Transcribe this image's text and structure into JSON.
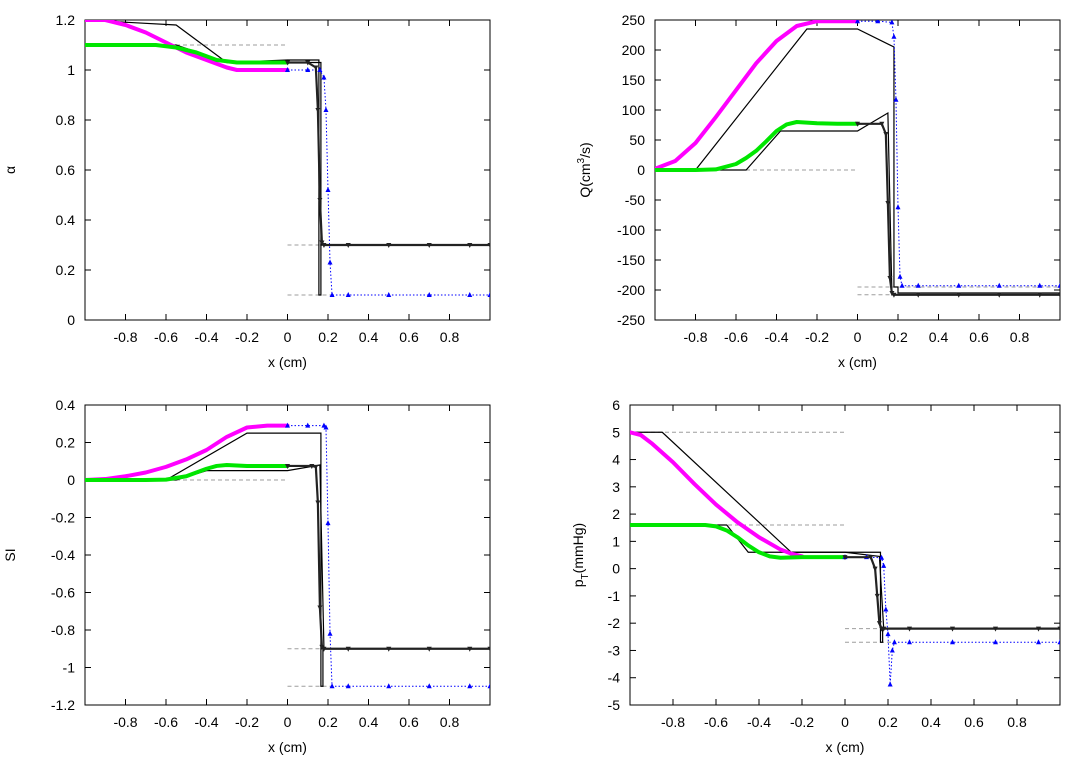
{
  "figure": {
    "colors": {
      "exact": "#000000",
      "ref": "#9e9e9e",
      "scheme_left": "#ff00ff",
      "scheme_right": "#0000ff",
      "scheme_green": "#00e600",
      "scheme_mark": "#222222"
    }
  },
  "chart_data": [
    {
      "id": "alpha",
      "type": "line",
      "title": "",
      "xlabel": "x (cm)",
      "ylabel": "α",
      "xlim": [
        -1,
        1
      ],
      "ylim": [
        0,
        1.2
      ],
      "xticks": [
        -0.8,
        -0.6,
        -0.4,
        -0.2,
        0,
        0.2,
        0.4,
        0.6,
        0.8
      ],
      "xtick_labels": [
        "-0.8",
        "-0.6",
        "-0.4",
        "-0.2",
        "0",
        "0.2",
        "0.4",
        "0.6",
        "0.8"
      ],
      "yticks": [
        0,
        0.2,
        0.4,
        0.6,
        0.8,
        1,
        1.2
      ],
      "ytick_labels": [
        "0",
        "0.2",
        "0.4",
        "0.6",
        "0.8",
        "1",
        "1.2"
      ],
      "series": [
        {
          "name": "initial-data-reference",
          "style": "ref",
          "x": [
            -1,
            0,
            0,
            1
          ],
          "y": [
            1.1,
            1.1,
            null,
            null
          ]
        },
        {
          "name": "reference-right-high",
          "style": "ref",
          "x": [
            0,
            1
          ],
          "y": [
            0.3,
            0.3
          ]
        },
        {
          "name": "reference-right-low",
          "style": "ref",
          "x": [
            0,
            0.22
          ],
          "y": [
            0.1,
            0.1
          ]
        },
        {
          "name": "exact-solution-a",
          "style": "exact",
          "x": [
            -1,
            -0.55,
            -0.3,
            0,
            0.155,
            0.155,
            0.165,
            0.165,
            1
          ],
          "y": [
            1.2,
            1.18,
            1.03,
            1.04,
            1.04,
            0.1,
            0.1,
            0.3,
            0.3
          ]
        },
        {
          "name": "exact-solution-b",
          "style": "exact",
          "x": [
            -1,
            -0.55,
            -0.3,
            0,
            0.155,
            0.165,
            0.165,
            0.3
          ],
          "y": [
            1.1,
            1.1,
            1.03,
            1.03,
            1.03,
            1.03,
            0.3,
            0.3
          ]
        },
        {
          "name": "scheme-top",
          "style": "scheme_left",
          "x": [
            -1,
            -0.9,
            -0.8,
            -0.7,
            -0.6,
            -0.5,
            -0.4,
            -0.3,
            -0.25,
            -0.2,
            -0.15,
            -0.1,
            0
          ],
          "y": [
            1.2,
            1.2,
            1.18,
            1.15,
            1.11,
            1.07,
            1.04,
            1.01,
            1.0,
            1.0,
            1.0,
            1.0,
            1.0
          ]
        },
        {
          "name": "scheme-bottom",
          "style": "scheme_green",
          "x": [
            -1,
            -0.8,
            -0.65,
            -0.55,
            -0.45,
            -0.35,
            -0.25,
            -0.1,
            0
          ],
          "y": [
            1.1,
            1.1,
            1.1,
            1.09,
            1.07,
            1.04,
            1.03,
            1.03,
            1.03
          ]
        },
        {
          "name": "scheme-right-tail",
          "style": "scheme_right",
          "x": [
            0,
            0.1,
            0.16,
            0.18,
            0.19,
            0.2,
            0.21,
            0.22,
            0.3,
            0.5,
            0.7,
            0.9,
            1
          ],
          "y": [
            1.0,
            1.0,
            1.0,
            0.97,
            0.84,
            0.52,
            0.23,
            0.1,
            0.1,
            0.1,
            0.1,
            0.1,
            0.1
          ]
        },
        {
          "name": "scheme-middle-tail",
          "style": "scheme_mark",
          "x": [
            0,
            0.1,
            0.14,
            0.15,
            0.16,
            0.17,
            0.18,
            0.3,
            0.5,
            0.7,
            0.9,
            1
          ],
          "y": [
            1.03,
            1.03,
            1.01,
            0.84,
            0.48,
            0.31,
            0.3,
            0.3,
            0.3,
            0.3,
            0.3,
            0.3
          ]
        }
      ]
    },
    {
      "id": "flow",
      "type": "line",
      "title": "",
      "xlabel": "x (cm)",
      "ylabel": "Q(cm³/s)",
      "ylabel_base": "Q(cm",
      "ylabel_sup": "3",
      "ylabel_tail": "/s)",
      "xlim": [
        -1,
        1
      ],
      "ylim": [
        -250,
        250
      ],
      "xticks": [
        -0.8,
        -0.6,
        -0.4,
        -0.2,
        0,
        0.2,
        0.4,
        0.6,
        0.8
      ],
      "xtick_labels": [
        "-0.8",
        "-0.6",
        "-0.4",
        "-0.2",
        "0",
        "0.2",
        "0.4",
        "0.6",
        "0.8"
      ],
      "yticks": [
        -250,
        -200,
        -150,
        -100,
        -50,
        0,
        50,
        100,
        150,
        200,
        250
      ],
      "ytick_labels": [
        "-250",
        "-200",
        "-150",
        "-100",
        "-50",
        "0",
        "50",
        "100",
        "150",
        "200",
        "250"
      ],
      "series": [
        {
          "name": "reference-left",
          "style": "ref",
          "x": [
            -1,
            0
          ],
          "y": [
            0,
            0
          ]
        },
        {
          "name": "reference-right-a",
          "style": "ref",
          "x": [
            0,
            1
          ],
          "y": [
            -195,
            -195
          ]
        },
        {
          "name": "reference-right-b",
          "style": "ref",
          "x": [
            0,
            0.22
          ],
          "y": [
            -208,
            -208
          ]
        },
        {
          "name": "exact-solution-a",
          "style": "exact",
          "x": [
            -1,
            -0.8,
            -0.25,
            -0.18,
            0,
            0.18,
            0.18,
            0.2,
            0.2,
            1
          ],
          "y": [
            0,
            0,
            235,
            235,
            235,
            205,
            -195,
            -195,
            -205,
            -205
          ]
        },
        {
          "name": "exact-solution-b",
          "style": "exact",
          "x": [
            -1,
            -0.55,
            -0.38,
            0,
            0.15,
            0.15,
            0.17,
            0.17,
            0.3
          ],
          "y": [
            0,
            0,
            65,
            65,
            95,
            95,
            -208,
            -208,
            -208
          ]
        },
        {
          "name": "scheme-top",
          "style": "scheme_left",
          "x": [
            -1,
            -0.9,
            -0.8,
            -0.7,
            -0.6,
            -0.5,
            -0.4,
            -0.3,
            -0.2,
            -0.1,
            0
          ],
          "y": [
            2,
            15,
            45,
            88,
            133,
            178,
            215,
            240,
            248,
            248,
            248
          ]
        },
        {
          "name": "scheme-bottom",
          "style": "scheme_green",
          "x": [
            -1,
            -0.8,
            -0.7,
            -0.6,
            -0.55,
            -0.5,
            -0.45,
            -0.4,
            -0.35,
            -0.3,
            -0.2,
            -0.1,
            0
          ],
          "y": [
            0,
            0,
            1,
            10,
            20,
            32,
            48,
            65,
            76,
            80,
            78,
            77,
            77
          ]
        },
        {
          "name": "scheme-right-tail",
          "style": "scheme_right",
          "x": [
            0,
            0.1,
            0.17,
            0.18,
            0.19,
            0.2,
            0.21,
            0.22,
            0.3,
            0.5,
            0.7,
            0.9,
            1
          ],
          "y": [
            248,
            248,
            246,
            222,
            117,
            -62,
            -178,
            -193,
            -193,
            -193,
            -193,
            -193,
            -193
          ]
        },
        {
          "name": "scheme-middle-tail",
          "style": "scheme_mark",
          "x": [
            0,
            0.12,
            0.14,
            0.15,
            0.16,
            0.17,
            0.18,
            0.3,
            0.5,
            0.7,
            0.9,
            1
          ],
          "y": [
            77,
            77,
            60,
            -55,
            -180,
            -205,
            -208,
            -208,
            -208,
            -208,
            -208,
            -208
          ]
        }
      ]
    },
    {
      "id": "si",
      "type": "line",
      "title": "",
      "xlabel": "x (cm)",
      "ylabel": "SI",
      "xlim": [
        -1,
        1
      ],
      "ylim": [
        -1.2,
        0.4
      ],
      "xticks": [
        -0.8,
        -0.6,
        -0.4,
        -0.2,
        0,
        0.2,
        0.4,
        0.6,
        0.8
      ],
      "xtick_labels": [
        "-0.8",
        "-0.6",
        "-0.4",
        "-0.2",
        "0",
        "0.2",
        "0.4",
        "0.6",
        "0.8"
      ],
      "yticks": [
        -1.2,
        -1,
        -0.8,
        -0.6,
        -0.4,
        -0.2,
        0,
        0.2,
        0.4
      ],
      "ytick_labels": [
        "-1.2",
        "-1",
        "-0.8",
        "-0.6",
        "-0.4",
        "-0.2",
        "0",
        "0.2",
        "0.4"
      ],
      "series": [
        {
          "name": "reference-left",
          "style": "ref",
          "x": [
            -1,
            0
          ],
          "y": [
            0,
            0
          ]
        },
        {
          "name": "reference-right-a",
          "style": "ref",
          "x": [
            0,
            1
          ],
          "y": [
            -0.9,
            -0.9
          ]
        },
        {
          "name": "reference-right-b",
          "style": "ref",
          "x": [
            0,
            0.22
          ],
          "y": [
            -1.1,
            -1.1
          ]
        },
        {
          "name": "exact-solution-a",
          "style": "exact",
          "x": [
            -1,
            -0.6,
            -0.2,
            0,
            0.165,
            0.165,
            0.175,
            0.175,
            1
          ],
          "y": [
            0,
            0,
            0.25,
            0.25,
            0.25,
            -1.1,
            -1.1,
            -0.9,
            -0.9
          ]
        },
        {
          "name": "exact-solution-b",
          "style": "exact",
          "x": [
            -1,
            -0.55,
            -0.4,
            0,
            0.16,
            0.16,
            0.18,
            0.18,
            0.3
          ],
          "y": [
            0,
            0,
            0.05,
            0.05,
            0.08,
            0.08,
            -0.9,
            -0.9,
            -0.9
          ]
        },
        {
          "name": "scheme-top",
          "style": "scheme_left",
          "x": [
            -1,
            -0.9,
            -0.8,
            -0.7,
            -0.6,
            -0.5,
            -0.4,
            -0.3,
            -0.2,
            -0.1,
            0
          ],
          "y": [
            0,
            0.005,
            0.02,
            0.04,
            0.07,
            0.11,
            0.16,
            0.23,
            0.28,
            0.29,
            0.29
          ]
        },
        {
          "name": "scheme-bottom",
          "style": "scheme_green",
          "x": [
            -1,
            -0.8,
            -0.7,
            -0.6,
            -0.5,
            -0.45,
            -0.4,
            -0.35,
            -0.3,
            -0.2,
            -0.1,
            0
          ],
          "y": [
            0,
            0,
            0,
            0.002,
            0.02,
            0.04,
            0.06,
            0.075,
            0.08,
            0.075,
            0.075,
            0.075
          ]
        },
        {
          "name": "scheme-right-tail",
          "style": "scheme_right",
          "x": [
            0,
            0.1,
            0.18,
            0.19,
            0.2,
            0.21,
            0.22,
            0.3,
            0.5,
            0.7,
            0.9,
            1
          ],
          "y": [
            0.29,
            0.29,
            0.29,
            0.28,
            -0.23,
            -0.82,
            -1.1,
            -1.1,
            -1.1,
            -1.1,
            -1.1,
            -1.1
          ]
        },
        {
          "name": "scheme-middle-tail",
          "style": "scheme_mark",
          "x": [
            0,
            0.12,
            0.14,
            0.15,
            0.16,
            0.17,
            0.18,
            0.3,
            0.5,
            0.7,
            0.9,
            1
          ],
          "y": [
            0.075,
            0.075,
            0.07,
            -0.12,
            -0.68,
            -0.89,
            -0.9,
            -0.9,
            -0.9,
            -0.9,
            -0.9,
            -0.9
          ]
        }
      ]
    },
    {
      "id": "pressure",
      "type": "line",
      "title": "",
      "xlabel": "x (cm)",
      "ylabel": "pT(mmHg)",
      "ylabel_base": "p",
      "ylabel_sub": "T",
      "ylabel_tail": "(mmHg)",
      "xlim": [
        -1,
        1
      ],
      "ylim": [
        -5,
        6
      ],
      "xticks": [
        -0.8,
        -0.6,
        -0.4,
        -0.2,
        0,
        0.2,
        0.4,
        0.6,
        0.8
      ],
      "xtick_labels": [
        "-0.8",
        "-0.6",
        "-0.4",
        "-0.2",
        "0",
        "0.2",
        "0.4",
        "0.6",
        "0.8"
      ],
      "yticks": [
        -5,
        -4,
        -3,
        -2,
        -1,
        0,
        1,
        2,
        3,
        4,
        5,
        6
      ],
      "ytick_labels": [
        "-5",
        "-4",
        "-3",
        "-2",
        "-1",
        "0",
        "1",
        "2",
        "3",
        "4",
        "5",
        "6"
      ],
      "series": [
        {
          "name": "reference-left-high",
          "style": "ref",
          "x": [
            -1,
            0
          ],
          "y": [
            5,
            5
          ]
        },
        {
          "name": "reference-left-low",
          "style": "ref",
          "x": [
            -1,
            0
          ],
          "y": [
            1.6,
            1.6
          ]
        },
        {
          "name": "reference-right-a",
          "style": "ref",
          "x": [
            0,
            0.22
          ],
          "y": [
            -2.2,
            -2.2
          ]
        },
        {
          "name": "reference-right-b",
          "style": "ref",
          "x": [
            0,
            0.22
          ],
          "y": [
            -2.7,
            -2.7
          ]
        },
        {
          "name": "exact-solution-a",
          "style": "exact",
          "x": [
            -1,
            -0.85,
            -0.25,
            0,
            0.165,
            0.165,
            0.175,
            0.175,
            1
          ],
          "y": [
            5,
            5,
            0.6,
            0.6,
            0.6,
            -2.7,
            -2.7,
            -2.2,
            -2.2
          ]
        },
        {
          "name": "exact-solution-b",
          "style": "exact",
          "x": [
            -1,
            -0.55,
            -0.45,
            0,
            0.16,
            0.16,
            0.18,
            0.18,
            0.3
          ],
          "y": [
            1.6,
            1.6,
            0.6,
            0.6,
            0.45,
            0.45,
            -2.2,
            -2.2,
            -2.2
          ]
        },
        {
          "name": "scheme-top",
          "style": "scheme_left",
          "x": [
            -1,
            -0.95,
            -0.9,
            -0.8,
            -0.7,
            -0.6,
            -0.5,
            -0.4,
            -0.3,
            -0.25,
            -0.2
          ],
          "y": [
            5.0,
            4.9,
            4.6,
            3.9,
            3.1,
            2.35,
            1.7,
            1.15,
            0.7,
            0.55,
            0.45
          ]
        },
        {
          "name": "scheme-bottom",
          "style": "scheme_green",
          "x": [
            -1,
            -0.8,
            -0.65,
            -0.6,
            -0.55,
            -0.5,
            -0.45,
            -0.4,
            -0.35,
            -0.3,
            -0.2,
            -0.1,
            0
          ],
          "y": [
            1.6,
            1.6,
            1.6,
            1.55,
            1.4,
            1.15,
            0.85,
            0.6,
            0.45,
            0.4,
            0.42,
            0.42,
            0.42
          ]
        },
        {
          "name": "scheme-right-tail",
          "style": "scheme_right",
          "x": [
            0,
            0.1,
            0.17,
            0.18,
            0.19,
            0.2,
            0.21,
            0.22,
            0.23,
            0.3,
            0.5,
            0.7,
            0.9,
            1
          ],
          "y": [
            0.42,
            0.42,
            0.4,
            0.1,
            -1.5,
            -2.4,
            -4.25,
            -3.0,
            -2.7,
            -2.7,
            -2.7,
            -2.7,
            -2.7,
            -2.7
          ]
        },
        {
          "name": "scheme-middle-tail",
          "style": "scheme_mark",
          "x": [
            0,
            0.12,
            0.14,
            0.15,
            0.16,
            0.17,
            0.18,
            0.3,
            0.5,
            0.7,
            0.9,
            1
          ],
          "y": [
            0.42,
            0.42,
            0.0,
            -1.0,
            -2.0,
            -2.2,
            -2.2,
            -2.2,
            -2.2,
            -2.2,
            -2.2,
            -2.2
          ]
        }
      ]
    }
  ]
}
